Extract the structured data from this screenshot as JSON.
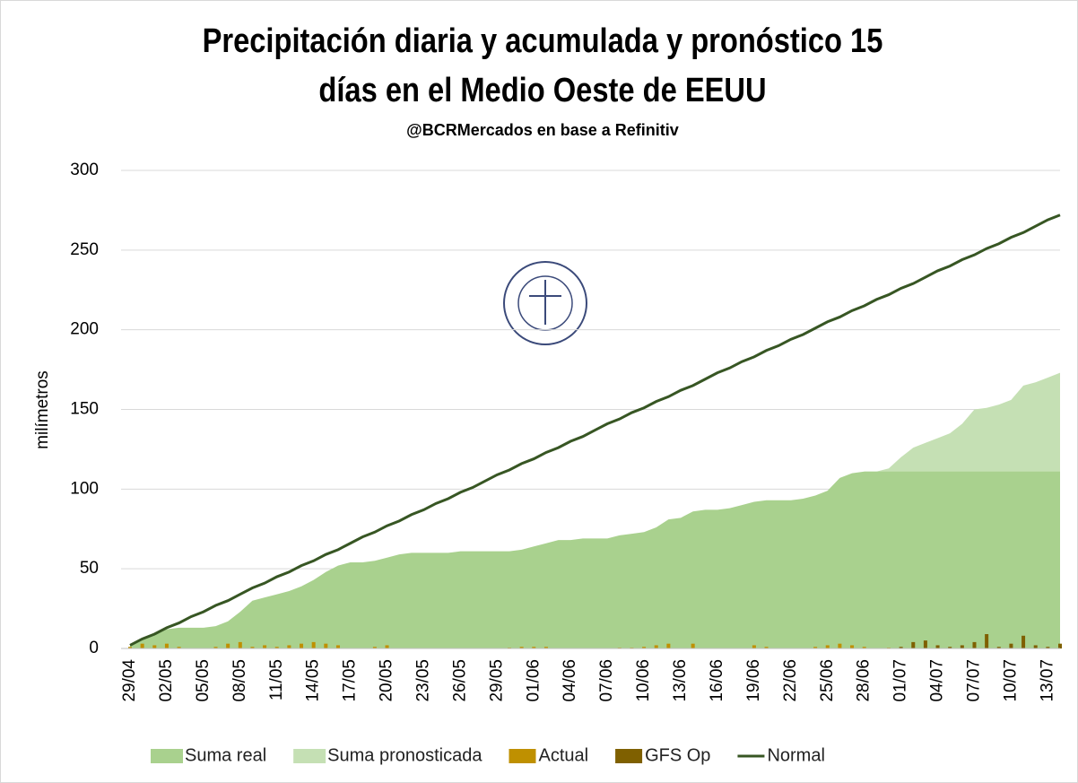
{
  "chart_data": {
    "type": "area",
    "title": [
      "Precipitación diaria y acumulada y pronóstico  15",
      "días en el Medio Oeste de EEUU"
    ],
    "subtitle": "@BCRMercados  en base a Refinitiv",
    "y_label": "milímetros",
    "ylim": [
      0,
      300
    ],
    "yticks": [
      0,
      50,
      100,
      150,
      200,
      250,
      300
    ],
    "grid": true,
    "legend": "bottom",
    "categories": [
      "29/04",
      null,
      null,
      "02/05",
      null,
      null,
      "05/05",
      null,
      null,
      "08/05",
      null,
      null,
      "11/05",
      null,
      null,
      "14/05",
      null,
      null,
      "17/05",
      null,
      null,
      "20/05",
      null,
      null,
      "23/05",
      null,
      null,
      "26/05",
      null,
      null,
      "29/05",
      null,
      null,
      "01/06",
      null,
      null,
      "04/06",
      null,
      null,
      "07/06",
      null,
      null,
      "10/06",
      null,
      null,
      "13/06",
      null,
      null,
      "16/06",
      null,
      null,
      "19/06",
      null,
      null,
      "22/06",
      null,
      null,
      "25/06",
      null,
      null,
      "28/06",
      null,
      null,
      "01/07",
      null,
      null,
      "04/07",
      null,
      null,
      "07/07",
      null,
      null,
      "10/07",
      null,
      null,
      "13/07",
      null
    ],
    "series": [
      {
        "name": "Suma real",
        "kind": "area",
        "color": "#a9d18e",
        "values": [
          2,
          6,
          9,
          12,
          13,
          13,
          13,
          14,
          17,
          23,
          30,
          32,
          34,
          36,
          39,
          43,
          48,
          52,
          54,
          54,
          55,
          57,
          59,
          60,
          60,
          60,
          60,
          61,
          61,
          61,
          61,
          61,
          62,
          64,
          66,
          68,
          68,
          69,
          69,
          69,
          71,
          72,
          73,
          76,
          81,
          82,
          86,
          87,
          87,
          88,
          90,
          92,
          93,
          93,
          93,
          94,
          96,
          99,
          107,
          110,
          111,
          111,
          111,
          111,
          111,
          111,
          111,
          111,
          111,
          111,
          111,
          111,
          111,
          111,
          111,
          111,
          111
        ]
      },
      {
        "name": "Suma pronosticada",
        "kind": "area",
        "color": "#c5e0b4",
        "values": [
          null,
          null,
          null,
          null,
          null,
          null,
          null,
          null,
          null,
          null,
          null,
          null,
          null,
          null,
          null,
          null,
          null,
          null,
          null,
          null,
          null,
          null,
          null,
          null,
          null,
          null,
          null,
          null,
          null,
          null,
          null,
          null,
          null,
          null,
          null,
          null,
          null,
          null,
          null,
          null,
          null,
          null,
          null,
          null,
          null,
          null,
          null,
          null,
          null,
          null,
          null,
          null,
          null,
          null,
          null,
          null,
          null,
          null,
          null,
          null,
          111,
          111,
          113,
          120,
          126,
          129,
          132,
          135,
          141,
          150,
          151,
          153,
          156,
          165,
          167,
          170,
          173
        ]
      },
      {
        "name": "Actual",
        "kind": "bar",
        "color": "#bf9000",
        "values": [
          1,
          3,
          2,
          3,
          1,
          0,
          0,
          1,
          3,
          4,
          1,
          2,
          1,
          2,
          3,
          4,
          3,
          2,
          0,
          0,
          1,
          2,
          0,
          0,
          0,
          0,
          0,
          0,
          0,
          0,
          0,
          0.5,
          1,
          1,
          1,
          0,
          0,
          0,
          0,
          0,
          0.5,
          0.5,
          1,
          2,
          3,
          0,
          3,
          0,
          0,
          0,
          0,
          2,
          1,
          0,
          0,
          0,
          1,
          2,
          3,
          2,
          1,
          0,
          0.5,
          null,
          null,
          null,
          null,
          null,
          null,
          null,
          null,
          null,
          null,
          null,
          null,
          null,
          null
        ]
      },
      {
        "name": "GFS Op",
        "kind": "bar",
        "color": "#7f6000",
        "values": [
          null,
          null,
          null,
          null,
          null,
          null,
          null,
          null,
          null,
          null,
          null,
          null,
          null,
          null,
          null,
          null,
          null,
          null,
          null,
          null,
          null,
          null,
          null,
          null,
          null,
          null,
          null,
          null,
          null,
          null,
          null,
          null,
          null,
          null,
          null,
          null,
          null,
          null,
          null,
          null,
          null,
          null,
          null,
          null,
          null,
          null,
          null,
          null,
          null,
          null,
          null,
          null,
          null,
          null,
          null,
          null,
          null,
          null,
          null,
          null,
          null,
          null,
          null,
          1,
          4,
          5,
          2,
          1,
          2,
          4,
          9,
          1,
          3,
          8,
          2,
          1,
          3
        ]
      },
      {
        "name": "Normal",
        "kind": "line",
        "color": "#375623",
        "values": [
          2,
          6,
          9,
          13,
          16,
          20,
          23,
          27,
          30,
          34,
          38,
          41,
          45,
          48,
          52,
          55,
          59,
          62,
          66,
          70,
          73,
          77,
          80,
          84,
          87,
          91,
          94,
          98,
          101,
          105,
          109,
          112,
          116,
          119,
          123,
          126,
          130,
          133,
          137,
          141,
          144,
          148,
          151,
          155,
          158,
          162,
          165,
          169,
          173,
          176,
          180,
          183,
          187,
          190,
          194,
          197,
          201,
          205,
          208,
          212,
          215,
          219,
          222,
          226,
          229,
          233,
          237,
          240,
          244,
          247,
          251,
          254,
          258,
          261,
          265,
          269,
          272
        ]
      }
    ]
  }
}
